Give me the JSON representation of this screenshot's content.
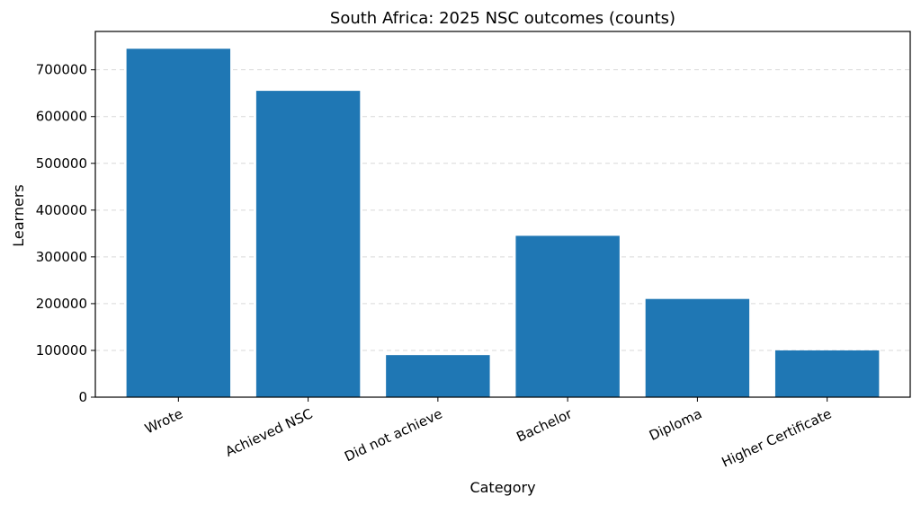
{
  "chart_data": {
    "type": "bar",
    "title": "South Africa: 2025 NSC outcomes (counts)",
    "xlabel": "Category",
    "ylabel": "Learners",
    "categories": [
      "Wrote",
      "Achieved NSC",
      "Did not achieve",
      "Bachelor",
      "Diploma",
      "Higher Certificate"
    ],
    "values": [
      745000,
      655000,
      90000,
      345000,
      210000,
      100000
    ],
    "ylim": [
      0,
      782000
    ],
    "yticks": [
      0,
      100000,
      200000,
      300000,
      400000,
      500000,
      600000,
      700000
    ],
    "ytick_labels": [
      "0",
      "100000",
      "200000",
      "300000",
      "400000",
      "500000",
      "600000",
      "700000"
    ],
    "grid": "y, dashed",
    "bar_color": "#1f77b4"
  }
}
